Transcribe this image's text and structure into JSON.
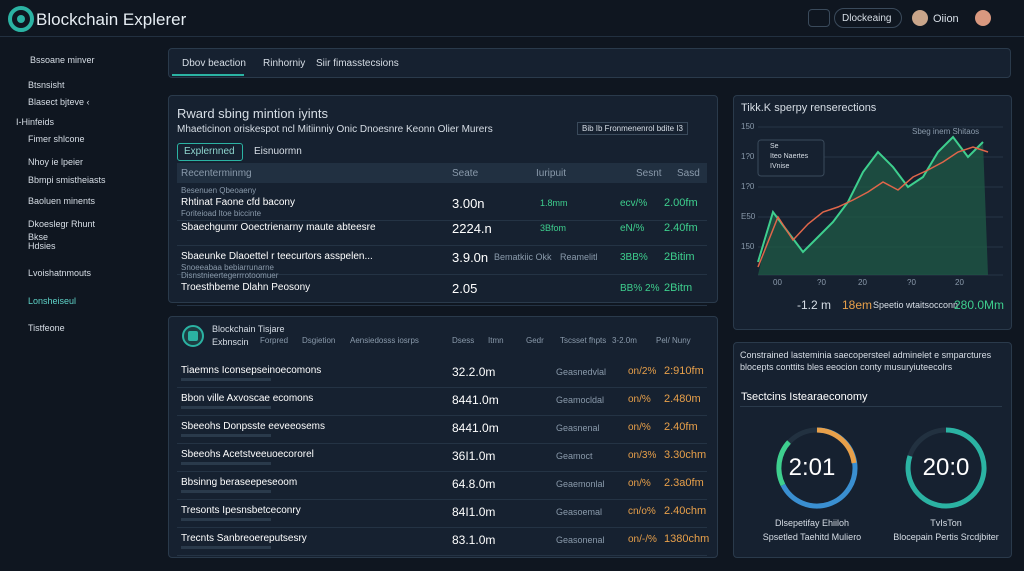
{
  "header": {
    "logo": "Blockchain Explerer",
    "search": "Dlockeaing",
    "user": "Oiion"
  },
  "sidebar": {
    "items": [
      "Bssoane minver",
      "Btsnsisht",
      "Blasect bjteve ‹",
      "I-Hinfeids",
      "Fimer shlcone",
      "Nhoy ie lpeier",
      "Bbmpi smistheiasts",
      "Baoluen minents",
      "Dkoeslegr Rhunt",
      "Bkse",
      "Hdsies",
      "Lvoishatnmouts",
      "Lonsheiseul",
      "Tistfeone"
    ]
  },
  "tabs": [
    "Dbov beaction",
    "Rinhorniy",
    "Siir fimasstecsions"
  ],
  "panel1": {
    "title": "Rward sbing mintion iyints",
    "subtitle": "Mhaeticinon oriskespot ncl Mitiinniy Onic Dnoesnre Keonn Olier Murers",
    "badge": "Bib  Ib  Fronmenenrol bdite I3",
    "tabs": [
      "Explernned",
      "Eisnuormn"
    ],
    "header": [
      "Recenterminmg",
      "Seate",
      "Iuripuit",
      "Sesnt",
      "Sasd"
    ],
    "rows": [
      {
        "label": "Besenuen Qbeoaeny",
        "name": "Rhtinat Faone cfd bacony",
        "sub": "Foriteioad ltoe biccinte",
        "value": "3.00n",
        "c2": "1.8mm",
        "pct": "ecv/%",
        "amt": "2.00fm"
      },
      {
        "name": "Sbaechgumr Ooectrienarny maute abteesre",
        "value": "2224.n",
        "c2": "3Bfom",
        "pct": "eN/%",
        "amt": "2.40fm"
      },
      {
        "name": "Sbaeunke Dlaoettel r teecurtors asspelen...",
        "sub": "Snoeeabaa bebiarrunarne",
        "value": "3.9.0n",
        "c2": "Bematkiic  Okk",
        "c3": "Reamelitl",
        "pct": "3BB%",
        "amt": "2Bitim"
      },
      {
        "label": "Disnstnieertegerrrotoomuer",
        "name": "Troesthbeme Dlahn Peosony",
        "value": "2.05",
        "pct": "BB% 2%",
        "amt": "2Bitm"
      }
    ]
  },
  "chart": {
    "title": "Tikk.K sperpy renserections",
    "legend": "Sbeg inem  Shitaos",
    "box": [
      "Se",
      "Iteo Naertes",
      "IVnise"
    ],
    "yticks": [
      "150",
      "1?0",
      "1?0",
      "E50",
      "150"
    ],
    "xticks": [
      "00",
      "?0",
      "20",
      "?0",
      "20"
    ],
    "footer": [
      "-1.2 m",
      "18em",
      "Speetio wtaitsocconn",
      "280.0Mm"
    ]
  },
  "panel3": {
    "title": "Blockchain Tisjare",
    "sub": "Exbnscin",
    "header": [
      "Forpred",
      "Dsgietion",
      "Aensiedosss iosrps",
      "Dsess",
      "Itmn",
      "Gedr",
      "Tscsset fhpts",
      "3-2.0m",
      "Pel/ Nuny"
    ],
    "rows": [
      [
        "Tiaemns Iconsepseinoecomons",
        "32.2.0m",
        "Geasnedvlal",
        "on/2%",
        "2:910fm"
      ],
      [
        "Bbon ville Axvoscae ecomons",
        "8441.0m",
        "Geamocldal",
        "on/%",
        "2.480m"
      ],
      [
        "Sbeeohs Donpsste eeveeosems",
        "8441.0m",
        "Geasnenal",
        "on/%",
        "2.40fm"
      ],
      [
        "Sbeeohs Acetstveeuoecororel",
        "36I1.0m",
        "Geamoct",
        "on/3%",
        "3.30chm"
      ],
      [
        "Bbsinng beraseepeseoom",
        "64.8.0m",
        "Geaemonlal",
        "on/%",
        "2.3a0fm"
      ],
      [
        "Tresonts Ipesnsbetceconry",
        "84I1.0m",
        "Geasoemal",
        "cn/o%",
        "2.40chm"
      ],
      [
        "Trecnts Sanbreoereputsesry",
        "83.1.0m",
        "Geasonenal",
        "on/-/%",
        "1380chm"
      ]
    ]
  },
  "panel4": {
    "text": [
      "Constrained lasteminia saecopersteel adminelet e smparctures",
      "blocepts conttits bles eeocion conty  musuryiuteecolrs"
    ],
    "heading": "Tsectcins Istearaeconomy",
    "gauges": [
      {
        "value": "2:01",
        "caption": "Dlsepetifay Ehiiloh",
        "sub": "Spsetled Taehitd Muliero"
      },
      {
        "value": "20:0",
        "caption": "TvIsTon",
        "sub": "Blocepain Pertis Srcdjbiter"
      }
    ]
  }
}
